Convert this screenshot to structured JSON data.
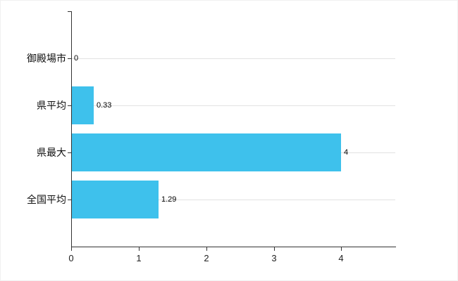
{
  "chart_data": {
    "type": "bar",
    "orientation": "horizontal",
    "title": "",
    "xlabel": "",
    "ylabel": "",
    "categories": [
      "御殿場市",
      "県平均",
      "県最大",
      "全国平均"
    ],
    "values": [
      0,
      0.33,
      4,
      1.29
    ],
    "value_labels": [
      "0",
      "0.33",
      "4",
      "1.29"
    ],
    "xlim": [
      0,
      4.8
    ],
    "xticks": [
      0,
      1,
      2,
      3,
      4
    ],
    "xtick_labels": [
      "0",
      "1",
      "2",
      "3",
      "4"
    ],
    "grid": "horizontal category gridlines",
    "legend": "none",
    "colors": {
      "bar": "#3ec1ec",
      "axis": "#333333",
      "gridline": "#e2e2e2",
      "text": "#111111",
      "background": "#ffffff"
    }
  }
}
